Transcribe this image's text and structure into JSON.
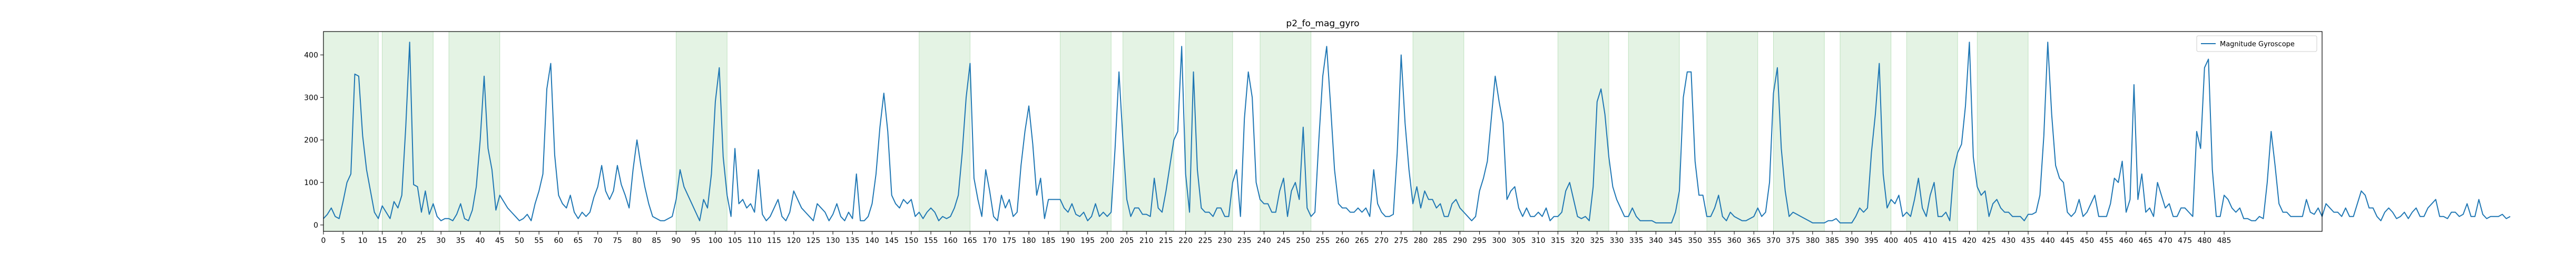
{
  "chart_data": {
    "type": "line",
    "title": "p2_fo_mag_gyro",
    "xlabel": "",
    "ylabel": "",
    "xlim": [
      0,
      510
    ],
    "ylim": [
      -15,
      455
    ],
    "xticks": [
      0,
      5,
      10,
      15,
      20,
      25,
      30,
      35,
      40,
      45,
      50,
      55,
      60,
      65,
      70,
      75,
      80,
      85,
      90,
      95,
      100,
      105,
      110,
      115,
      120,
      125,
      130,
      135,
      140,
      145,
      150,
      155,
      160,
      165,
      170,
      175,
      180,
      185,
      190,
      195,
      200,
      205,
      210,
      215,
      220,
      225,
      230,
      235,
      240,
      245,
      250,
      255,
      260,
      265,
      270,
      275,
      280,
      285,
      290,
      295,
      300,
      305,
      310,
      315,
      320,
      325,
      330,
      335,
      340,
      345,
      350,
      355,
      360,
      365,
      370,
      375,
      380,
      385,
      390,
      395,
      400,
      405,
      410,
      415,
      420,
      425,
      430,
      435,
      440,
      445,
      450,
      455,
      460,
      465,
      470,
      475,
      480,
      485
    ],
    "yticks": [
      0,
      100,
      200,
      300,
      400
    ],
    "grid": false,
    "legend_position": "top-right",
    "shaded_regions": [
      [
        0,
        14
      ],
      [
        15,
        28
      ],
      [
        32,
        45
      ],
      [
        90,
        103
      ],
      [
        152,
        165
      ],
      [
        188,
        201
      ],
      [
        204,
        217
      ],
      [
        220,
        232
      ],
      [
        239,
        252
      ],
      [
        278,
        291
      ],
      [
        315,
        328
      ],
      [
        333,
        346
      ],
      [
        353,
        366
      ],
      [
        370,
        383
      ],
      [
        387,
        400
      ],
      [
        404,
        417
      ],
      [
        422,
        435
      ]
    ],
    "series": [
      {
        "name": "Magnitude Gyroscope",
        "color": "#1f77b4",
        "values": [
          15,
          25,
          40,
          20,
          15,
          55,
          100,
          120,
          355,
          350,
          210,
          130,
          80,
          30,
          15,
          45,
          30,
          15,
          55,
          40,
          70,
          230,
          430,
          95,
          90,
          30,
          80,
          25,
          50,
          20,
          10,
          15,
          15,
          10,
          25,
          50,
          15,
          10,
          35,
          90,
          200,
          350,
          180,
          130,
          35,
          70,
          55,
          40,
          30,
          20,
          10,
          15,
          25,
          10,
          50,
          80,
          120,
          320,
          380,
          165,
          70,
          50,
          40,
          70,
          30,
          15,
          30,
          20,
          30,
          65,
          90,
          140,
          80,
          60,
          80,
          140,
          95,
          70,
          40,
          130,
          200,
          140,
          90,
          50,
          20,
          15,
          10,
          10,
          15,
          20,
          60,
          130,
          90,
          70,
          50,
          30,
          10,
          60,
          40,
          120,
          290,
          370,
          160,
          70,
          20,
          180,
          50,
          60,
          40,
          50,
          30,
          130,
          25,
          10,
          20,
          40,
          60,
          20,
          10,
          30,
          80,
          60,
          40,
          30,
          20,
          10,
          50,
          40,
          30,
          10,
          25,
          50,
          20,
          10,
          30,
          15,
          120,
          10,
          10,
          20,
          50,
          120,
          230,
          310,
          220,
          70,
          50,
          40,
          60,
          50,
          60,
          20,
          30,
          15,
          30,
          40,
          30,
          10,
          20,
          15,
          20,
          40,
          70,
          170,
          300,
          380,
          110,
          60,
          20,
          130,
          80,
          20,
          10,
          70,
          40,
          60,
          20,
          30,
          140,
          220,
          280,
          190,
          70,
          110,
          15,
          60,
          60,
          60,
          60,
          40,
          30,
          50,
          25,
          20,
          30,
          10,
          20,
          50,
          20,
          30,
          20,
          30,
          180,
          360,
          200,
          60,
          20,
          40,
          40,
          25,
          25,
          20,
          110,
          40,
          30,
          80,
          140,
          200,
          220,
          420,
          120,
          30,
          360,
          130,
          40,
          30,
          30,
          20,
          40,
          40,
          20,
          20,
          100,
          130,
          20,
          250,
          360,
          300,
          100,
          60,
          50,
          50,
          30,
          30,
          80,
          110,
          20,
          80,
          100,
          60,
          230,
          40,
          20,
          30,
          200,
          350,
          420,
          280,
          130,
          50,
          40,
          40,
          30,
          30,
          40,
          30,
          40,
          20,
          130,
          50,
          30,
          20,
          20,
          25,
          170,
          400,
          240,
          130,
          50,
          90,
          40,
          80,
          60,
          60,
          40,
          50,
          20,
          20,
          50,
          60,
          40,
          30,
          20,
          10,
          20,
          80,
          110,
          150,
          250,
          350,
          290,
          240,
          60,
          80,
          90,
          40,
          20,
          40,
          20,
          20,
          30,
          20,
          40,
          10,
          20,
          20,
          30,
          80,
          100,
          60,
          20,
          15,
          20,
          10,
          90,
          290,
          320,
          260,
          160,
          90,
          60,
          40,
          20,
          20,
          40,
          20,
          10,
          10,
          10,
          10,
          5,
          5,
          5,
          5,
          5,
          30,
          80,
          300,
          360,
          360,
          150,
          70,
          70,
          20,
          20,
          40,
          70,
          20,
          10,
          30,
          20,
          15,
          10,
          10,
          15,
          20,
          40,
          20,
          30,
          100,
          310,
          370,
          180,
          80,
          20,
          30,
          25,
          20,
          15,
          10,
          5,
          5,
          5,
          5,
          10,
          10,
          15,
          5,
          5,
          5,
          5,
          20,
          40,
          30,
          40,
          170,
          260,
          380,
          120,
          40,
          60,
          50,
          70,
          20,
          30,
          20,
          60,
          110,
          40,
          20,
          70,
          100,
          20,
          20,
          30,
          10,
          130,
          170,
          190,
          280,
          430,
          160,
          90,
          70,
          80,
          20,
          50,
          60,
          40,
          30,
          30,
          20,
          20,
          20,
          10,
          25,
          25,
          30,
          70,
          210,
          430,
          260,
          140,
          110,
          100,
          30,
          20,
          30,
          60,
          20,
          30,
          50,
          70,
          20,
          20,
          20,
          50,
          110,
          100,
          150,
          30,
          60,
          330,
          60,
          120,
          30,
          40,
          20,
          100,
          70,
          40,
          50,
          20,
          20,
          40,
          40,
          30,
          20,
          220,
          180,
          370,
          390,
          130,
          20,
          20,
          70,
          60,
          40,
          30,
          40,
          15,
          15,
          10,
          10,
          20,
          15,
          100,
          220,
          140,
          50,
          30,
          30,
          20,
          20,
          20,
          20,
          60,
          30,
          25,
          40,
          20,
          50,
          40,
          30,
          30,
          20,
          40,
          20,
          20,
          50,
          80,
          70,
          40,
          40,
          20,
          10,
          30,
          40,
          30,
          15,
          20,
          30,
          15,
          30,
          40,
          20,
          20,
          40,
          50,
          60,
          20,
          20,
          15,
          30,
          30,
          20,
          25,
          50,
          20,
          20,
          60,
          25,
          15,
          20,
          20,
          20,
          25,
          15,
          20
        ]
      }
    ]
  }
}
